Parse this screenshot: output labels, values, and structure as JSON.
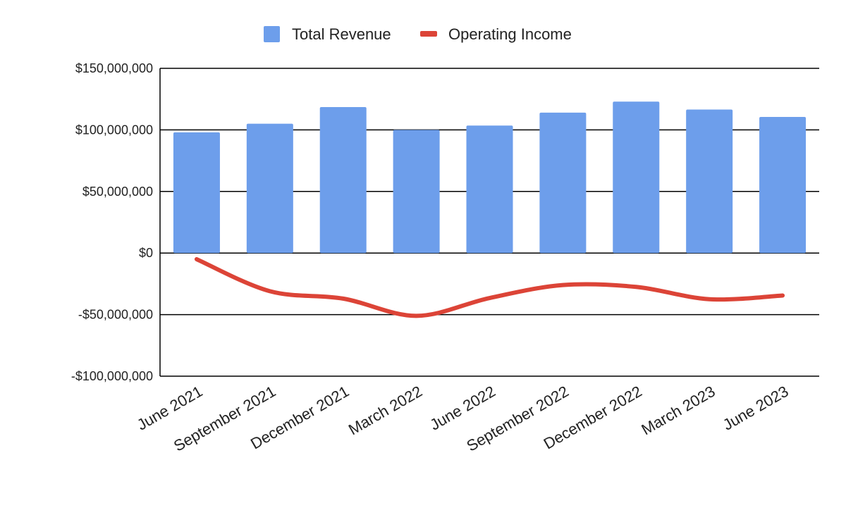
{
  "chart_data": {
    "type": "bar",
    "categories": [
      "June 2021",
      "September 2021",
      "December 2021",
      "March 2022",
      "June 2022",
      "September 2022",
      "December 2022",
      "March 2023",
      "June 2023"
    ],
    "series": [
      {
        "name": "Total Revenue",
        "type": "bar",
        "color": "#6d9eeb",
        "values": [
          98000000,
          105000000,
          118500000,
          100000000,
          103500000,
          114000000,
          123000000,
          116500000,
          110500000
        ]
      },
      {
        "name": "Operating Income",
        "type": "line",
        "color": "#dc4437",
        "values": [
          -5000000,
          -31000000,
          -37000000,
          -51000000,
          -36500000,
          -26000000,
          -27500000,
          -37500000,
          -34500000
        ]
      }
    ],
    "title": "",
    "xlabel": "",
    "ylabel": "",
    "ylim": [
      -100000000,
      150000000
    ],
    "yticks": [
      150000000,
      100000000,
      50000000,
      0,
      -50000000,
      -100000000
    ],
    "ytick_labels": [
      "$150,000,000",
      "$100,000,000",
      "$50,000,000",
      "$0",
      "-$50,000,000",
      "-$100,000,000"
    ],
    "grid": true,
    "legend_position": "top"
  }
}
